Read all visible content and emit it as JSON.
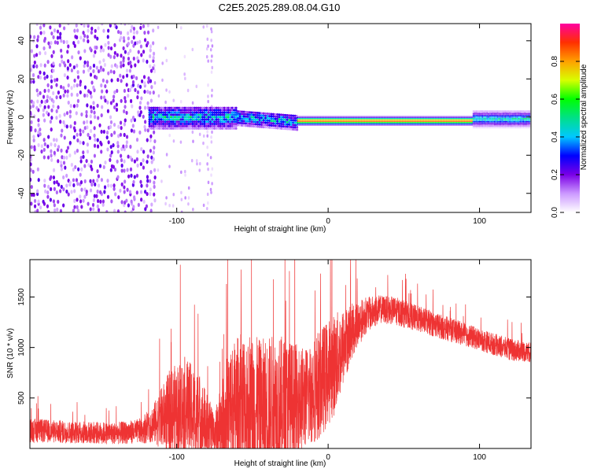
{
  "page_title": "C2E5.2025.289.08.04.G10",
  "chart_data": [
    {
      "type": "heatmap",
      "title": "C2E5.2025.289.08.04.G10",
      "xlabel": "Height of straight line (km)",
      "ylabel": "Frequency (Hz)",
      "xlim": [
        -197,
        134
      ],
      "ylim": [
        -50,
        49
      ],
      "x_ticks": [
        -100,
        0,
        100
      ],
      "x_tick_labels": [
        "-100",
        "0",
        "100"
      ],
      "y_ticks": [
        -40,
        -20,
        0,
        20,
        40
      ],
      "y_tick_labels": [
        "-40",
        "-20",
        "0",
        "20",
        "40"
      ],
      "colorbar": {
        "label": "Normalized spectral amplitude",
        "range": [
          0,
          1
        ],
        "ticks": [
          0.0,
          0.2,
          0.4,
          0.6,
          0.8
        ],
        "tick_labels": [
          "0.0",
          "0.2",
          "0.4",
          "0.6",
          "0.8"
        ],
        "colormap": [
          "#ffffff",
          "#cc99ff",
          "#7a00e6",
          "#0000ff",
          "#00c8ff",
          "#00e08a",
          "#00ff00",
          "#d8ff00",
          "#ffa000",
          "#ff3000",
          "#ff00a0"
        ]
      },
      "features": [
        {
          "region": "noise",
          "x_range": [
            -197,
            -115
          ],
          "freq_range": [
            -50,
            49
          ],
          "amplitude": 0.08
        },
        {
          "region": "scattered noise",
          "x_range": [
            -115,
            -75
          ],
          "freq_range": [
            -50,
            49
          ],
          "amplitude": 0.03
        },
        {
          "region": "broad signal",
          "x_range": [
            -118,
            -20
          ],
          "center_freq": 0,
          "half_width": 6,
          "amplitude": 0.45
        },
        {
          "region": "narrow carrier",
          "x_range": [
            -20,
            96
          ],
          "center_freq": -2,
          "half_width": 1.5,
          "amplitude": 0.95
        },
        {
          "region": "widening carrier",
          "x_range": [
            96,
            134
          ],
          "center_freq": -1,
          "half_width": 3,
          "amplitude": 0.5
        }
      ]
    },
    {
      "type": "line",
      "title": "",
      "xlabel": "Height of straight line (km)",
      "ylabel": "SNR (10 * v/v)",
      "xlim": [
        -197,
        134
      ],
      "ylim": [
        0,
        1870
      ],
      "x_ticks": [
        -100,
        0,
        100
      ],
      "x_tick_labels": [
        "-100",
        "0",
        "100"
      ],
      "y_ticks": [
        500,
        1000,
        1500
      ],
      "y_tick_labels": [
        "500",
        "1000",
        "1500"
      ],
      "color": "#ee3333",
      "envelope": {
        "x": [
          -197,
          -170,
          -140,
          -125,
          -115,
          -105,
          -95,
          -85,
          -75,
          -65,
          -55,
          -45,
          -35,
          -25,
          -15,
          -5,
          5,
          15,
          25,
          35,
          45,
          60,
          80,
          100,
          120,
          134
        ],
        "mid": [
          180,
          160,
          150,
          170,
          250,
          350,
          420,
          300,
          150,
          380,
          400,
          380,
          400,
          420,
          500,
          650,
          850,
          1150,
          1320,
          1380,
          1360,
          1280,
          1180,
          1080,
          980,
          950
        ],
        "spread": [
          120,
          110,
          110,
          120,
          200,
          420,
          500,
          450,
          200,
          650,
          800,
          700,
          750,
          650,
          500,
          550,
          500,
          280,
          180,
          140,
          140,
          130,
          120,
          110,
          110,
          100
        ]
      }
    }
  ]
}
